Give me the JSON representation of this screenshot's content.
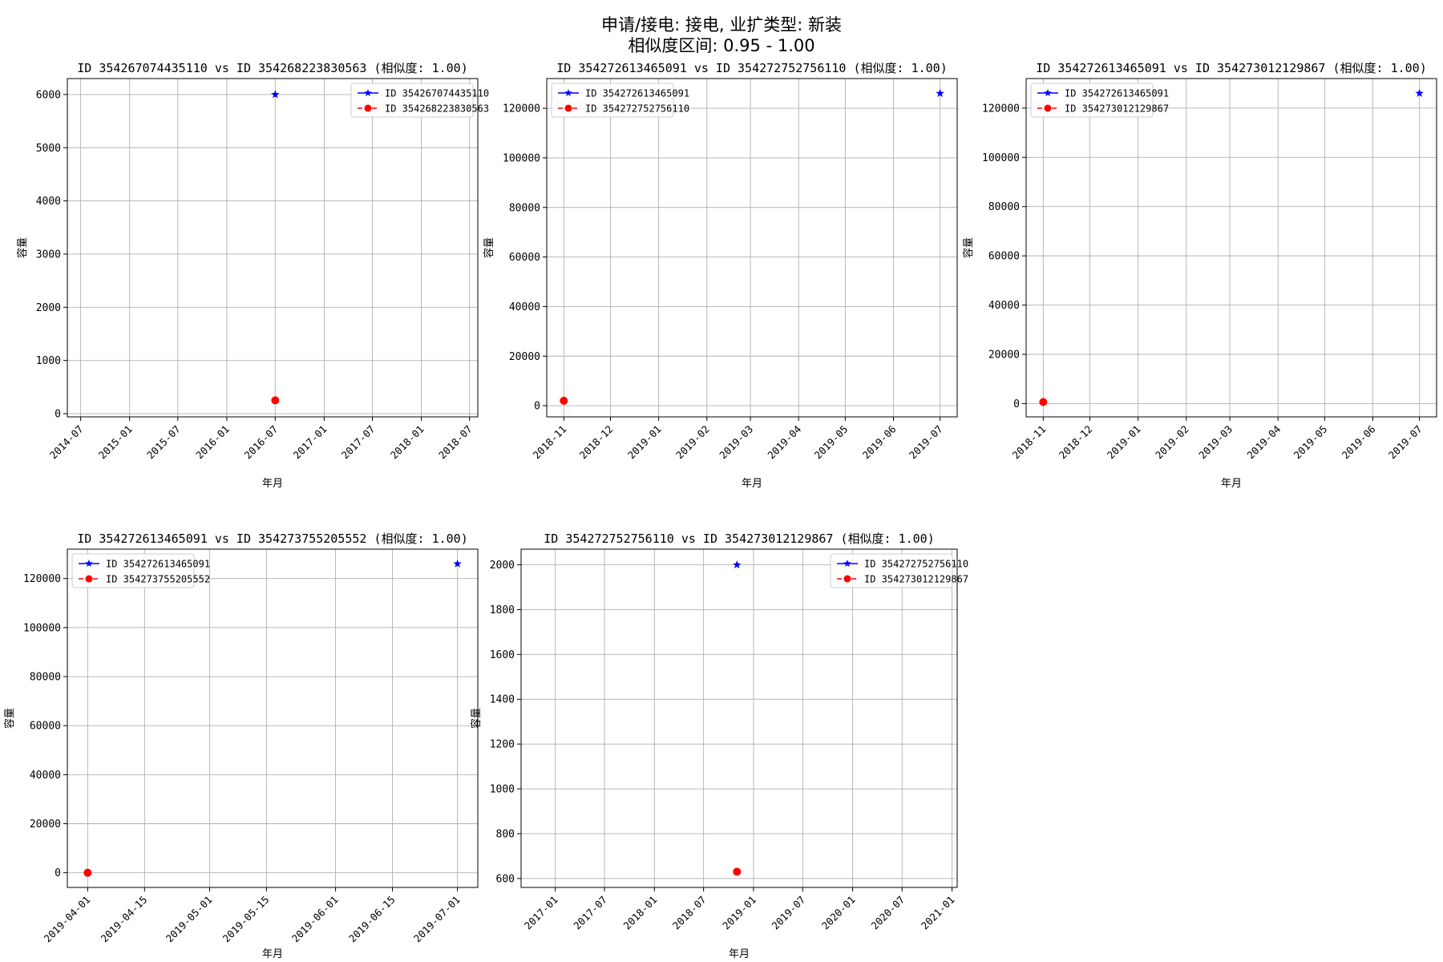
{
  "figure": {
    "suptitle_line1": "申请/接电: 接电, 业扩类型: 新装",
    "suptitle_line2": "相似度区间: 0.95 - 1.00"
  },
  "colors": {
    "series_a": "#0000ff",
    "series_b": "#ff0000",
    "grid": "#b0b0b0"
  },
  "chart_data": [
    {
      "type": "line",
      "title": "ID 354267074435110 vs ID 354268223830563 (相似度: 1.00)",
      "xlabel": "年月",
      "ylabel": "容量",
      "x_ticks": [
        "2014-07",
        "2015-01",
        "2015-07",
        "2016-01",
        "2016-07",
        "2017-01",
        "2017-07",
        "2018-01",
        "2018-07"
      ],
      "xlim": [
        "2014-05-12",
        "2018-08-01"
      ],
      "y_ticks": [
        0,
        1000,
        2000,
        3000,
        4000,
        5000,
        6000
      ],
      "ylim": [
        -60,
        6300
      ],
      "grid": true,
      "legend": "top-right",
      "series": [
        {
          "name": "ID 354267074435110",
          "marker": "star",
          "linestyle": "solid",
          "color": "#0000ff",
          "points": [
            {
              "x": "2016-07-01",
              "y": 6000
            }
          ]
        },
        {
          "name": "ID 354268223830563",
          "marker": "circle",
          "linestyle": "dashed",
          "color": "#ff0000",
          "points": [
            {
              "x": "2016-07-01",
              "y": 250
            }
          ]
        }
      ]
    },
    {
      "type": "line",
      "title": "ID 354272613465091 vs ID 354272752756110 (相似度: 1.00)",
      "xlabel": "年月",
      "ylabel": "容量",
      "x_ticks": [
        "2018-11",
        "2018-12",
        "2019-01",
        "2019-02",
        "2019-03",
        "2019-04",
        "2019-05",
        "2019-06",
        "2019-07"
      ],
      "xlim": [
        "2018-10-21",
        "2019-07-12"
      ],
      "y_ticks": [
        0,
        20000,
        40000,
        60000,
        80000,
        100000,
        120000
      ],
      "ylim": [
        -4500,
        132000
      ],
      "grid": true,
      "legend": "top-left",
      "series": [
        {
          "name": "ID 354272613465091",
          "marker": "star",
          "linestyle": "solid",
          "color": "#0000ff",
          "points": [
            {
              "x": "2019-07-01",
              "y": 126000
            }
          ]
        },
        {
          "name": "ID 354272752756110",
          "marker": "circle",
          "linestyle": "dashed",
          "color": "#ff0000",
          "points": [
            {
              "x": "2018-11-01",
              "y": 2000
            }
          ]
        }
      ]
    },
    {
      "type": "line",
      "title": "ID 354272613465091 vs ID 354273012129867 (相似度: 1.00)",
      "xlabel": "年月",
      "ylabel": "容量",
      "x_ticks": [
        "2018-11",
        "2018-12",
        "2019-01",
        "2019-02",
        "2019-03",
        "2019-04",
        "2019-05",
        "2019-06",
        "2019-07"
      ],
      "xlim": [
        "2018-10-21",
        "2019-07-12"
      ],
      "y_ticks": [
        0,
        20000,
        40000,
        60000,
        80000,
        100000,
        120000
      ],
      "ylim": [
        -5400,
        132000
      ],
      "grid": true,
      "legend": "top-left",
      "series": [
        {
          "name": "ID 354272613465091",
          "marker": "star",
          "linestyle": "solid",
          "color": "#0000ff",
          "points": [
            {
              "x": "2019-07-01",
              "y": 126000
            }
          ]
        },
        {
          "name": "ID 354273012129867",
          "marker": "circle",
          "linestyle": "dashed",
          "color": "#ff0000",
          "points": [
            {
              "x": "2018-11-01",
              "y": 630
            }
          ]
        }
      ]
    },
    {
      "type": "line",
      "title": "ID 354272613465091 vs ID 354273755205552 (相似度: 1.00)",
      "xlabel": "年月",
      "ylabel": "容量",
      "x_ticks": [
        "2019-04-01",
        "2019-04-15",
        "2019-05-01",
        "2019-05-15",
        "2019-06-01",
        "2019-06-15",
        "2019-07-01"
      ],
      "xlim": [
        "2019-03-27",
        "2019-07-06"
      ],
      "y_ticks": [
        0,
        20000,
        40000,
        60000,
        80000,
        100000,
        120000
      ],
      "ylim": [
        -6000,
        132000
      ],
      "grid": true,
      "legend": "top-left",
      "series": [
        {
          "name": "ID 354272613465091",
          "marker": "star",
          "linestyle": "solid",
          "color": "#0000ff",
          "points": [
            {
              "x": "2019-07-01",
              "y": 126000
            }
          ]
        },
        {
          "name": "ID 354273755205552",
          "marker": "circle",
          "linestyle": "dashed",
          "color": "#ff0000",
          "points": [
            {
              "x": "2019-04-01",
              "y": 0
            }
          ]
        }
      ]
    },
    {
      "type": "line",
      "title": "ID 354272752756110 vs ID 354273012129867 (相似度: 1.00)",
      "xlabel": "年月",
      "ylabel": "容量",
      "x_ticks": [
        "2017-01",
        "2017-07",
        "2018-01",
        "2018-07",
        "2019-01",
        "2019-07",
        "2020-01",
        "2020-07",
        "2021-01"
      ],
      "xlim": [
        "2016-08-28",
        "2021-01-20"
      ],
      "y_ticks": [
        600,
        800,
        1000,
        1200,
        1400,
        1600,
        1800,
        2000
      ],
      "ylim": [
        560,
        2070
      ],
      "grid": true,
      "legend": "top-right",
      "series": [
        {
          "name": "ID 354272752756110",
          "marker": "star",
          "linestyle": "solid",
          "color": "#0000ff",
          "points": [
            {
              "x": "2018-11-01",
              "y": 2000
            }
          ]
        },
        {
          "name": "ID 354273012129867",
          "marker": "circle",
          "linestyle": "dashed",
          "color": "#ff0000",
          "points": [
            {
              "x": "2018-11-01",
              "y": 630
            }
          ]
        }
      ]
    }
  ]
}
